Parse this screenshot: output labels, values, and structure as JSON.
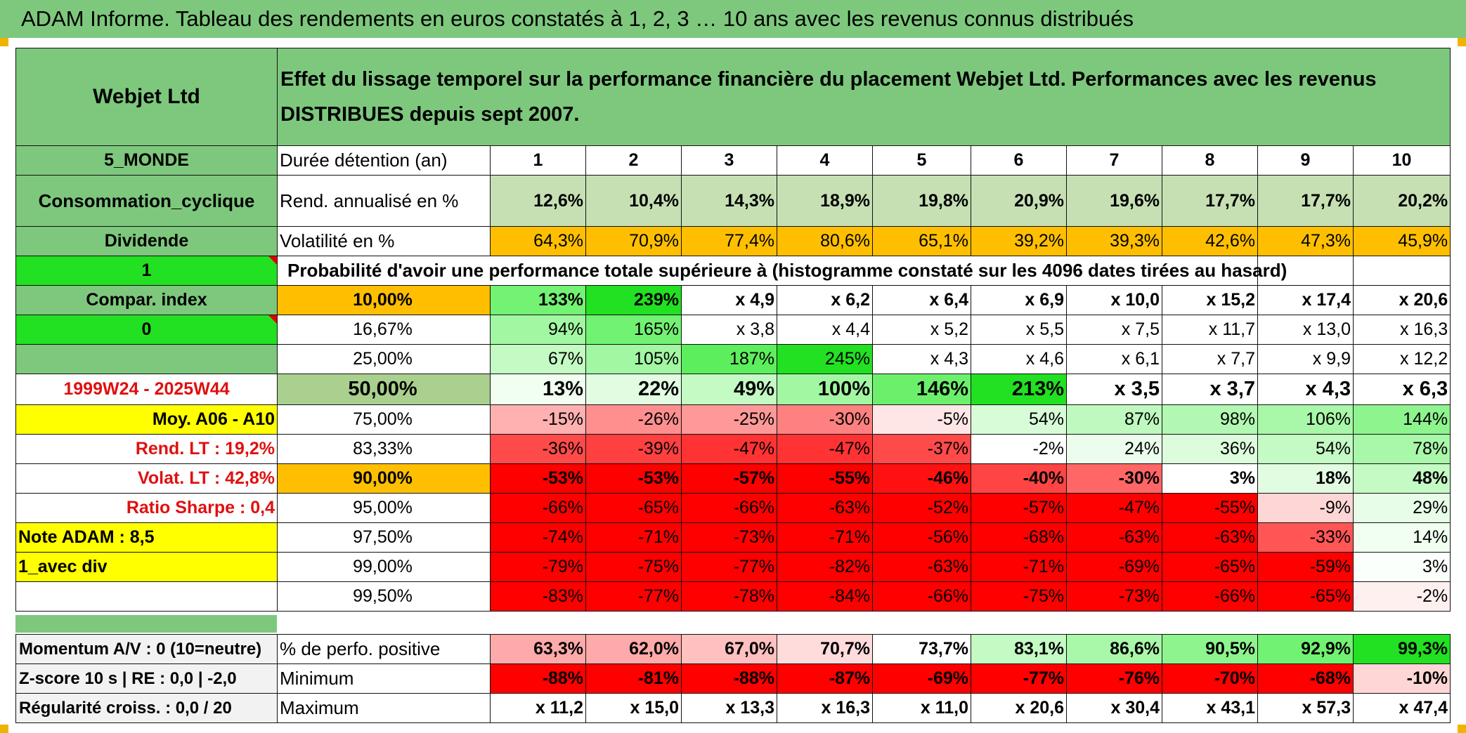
{
  "title": "ADAM Informe. Tableau des rendements en euros constatés à 1, 2, 3 … 10 ans avec les revenus connus distribués",
  "header": {
    "company": "Webjet Ltd",
    "description": "Effet du lissage temporel sur la performance financière du placement Webjet Ltd. Performances avec les revenus DISTRIBUES depuis sept 2007."
  },
  "left_labels": [
    "5_MONDE",
    "Consommation_cyclique",
    "Dividende",
    "1",
    "Compar. index",
    "0",
    "",
    "1999W24 - 2025W44",
    "Moy. A06 - A10",
    "Rend. LT :    19,2%",
    "Volat. LT :    42,8%",
    "Ratio Sharpe :    0,4",
    "Note ADAM : 8,5",
    "1_avec div",
    ""
  ],
  "durations_label": "Durée détention (an)",
  "durations": [
    "1",
    "2",
    "3",
    "4",
    "5",
    "6",
    "7",
    "8",
    "9",
    "10"
  ],
  "annual_return": {
    "label": "Rend. annualisé en %",
    "values": [
      "12,6%",
      "10,4%",
      "14,3%",
      "18,9%",
      "19,8%",
      "20,9%",
      "19,6%",
      "17,7%",
      "17,7%",
      "20,2%"
    ]
  },
  "volatility": {
    "label": "Volatilité en %",
    "values": [
      "64,3%",
      "70,9%",
      "77,4%",
      "80,6%",
      "65,1%",
      "39,2%",
      "39,3%",
      "42,6%",
      "47,3%",
      "45,9%"
    ]
  },
  "probability_header": "Probabilité d'avoir une performance totale supérieure à (histogramme constaté sur les 4096 dates tirées au hasard)",
  "quantiles": [
    {
      "level": "10,00%",
      "values": [
        "133%",
        "239%",
        "x 4,9",
        "x 6,2",
        "x 6,4",
        "x 6,9",
        "x 10,0",
        "x 15,2",
        "x 17,4",
        "x 20,6"
      ]
    },
    {
      "level": "16,67%",
      "values": [
        "94%",
        "165%",
        "x 3,8",
        "x 4,4",
        "x 5,2",
        "x 5,5",
        "x 7,5",
        "x 11,7",
        "x 13,0",
        "x 16,3"
      ]
    },
    {
      "level": "25,00%",
      "values": [
        "67%",
        "105%",
        "187%",
        "245%",
        "x 4,3",
        "x 4,6",
        "x 6,1",
        "x 7,7",
        "x 9,9",
        "x 12,2"
      ]
    },
    {
      "level": "50,00%",
      "values": [
        "13%",
        "22%",
        "49%",
        "100%",
        "146%",
        "213%",
        "x 3,5",
        "x 3,7",
        "x 4,3",
        "x 6,3"
      ]
    },
    {
      "level": "75,00%",
      "values": [
        "-15%",
        "-26%",
        "-25%",
        "-30%",
        "-5%",
        "54%",
        "87%",
        "98%",
        "106%",
        "144%"
      ]
    },
    {
      "level": "83,33%",
      "values": [
        "-36%",
        "-39%",
        "-47%",
        "-47%",
        "-37%",
        "-2%",
        "24%",
        "36%",
        "54%",
        "78%"
      ]
    },
    {
      "level": "90,00%",
      "values": [
        "-53%",
        "-53%",
        "-57%",
        "-55%",
        "-46%",
        "-40%",
        "-30%",
        "3%",
        "18%",
        "48%"
      ]
    },
    {
      "level": "95,00%",
      "values": [
        "-66%",
        "-65%",
        "-66%",
        "-63%",
        "-52%",
        "-57%",
        "-47%",
        "-55%",
        "-9%",
        "29%"
      ]
    },
    {
      "level": "97,50%",
      "values": [
        "-74%",
        "-71%",
        "-73%",
        "-71%",
        "-56%",
        "-68%",
        "-63%",
        "-63%",
        "-33%",
        "14%"
      ]
    },
    {
      "level": "99,00%",
      "values": [
        "-79%",
        "-75%",
        "-77%",
        "-82%",
        "-63%",
        "-71%",
        "-69%",
        "-65%",
        "-59%",
        "3%"
      ]
    },
    {
      "level": "99,50%",
      "values": [
        "-83%",
        "-77%",
        "-78%",
        "-84%",
        "-66%",
        "-75%",
        "-73%",
        "-66%",
        "-65%",
        "-2%"
      ]
    }
  ],
  "bottom_left": [
    "Momentum A/V : 0 (10=neutre)",
    "Z-score 10 s | RE : 0,0 | -2,0",
    "Régularité croiss. : 0,0 / 20"
  ],
  "stats": [
    {
      "label": "% de perfo. positive",
      "values": [
        "63,3%",
        "62,0%",
        "67,0%",
        "70,7%",
        "73,7%",
        "83,1%",
        "86,6%",
        "90,5%",
        "92,9%",
        "99,3%"
      ]
    },
    {
      "label": "Minimum",
      "values": [
        "-88%",
        "-81%",
        "-88%",
        "-87%",
        "-69%",
        "-77%",
        "-76%",
        "-70%",
        "-68%",
        "-10%"
      ]
    },
    {
      "label": "Maximum",
      "values": [
        "x 11,2",
        "x 15,0",
        "x 13,3",
        "x 16,3",
        "x 11,0",
        "x 20,6",
        "x 30,4",
        "x 43,1",
        "x 57,3",
        "x 47,4"
      ]
    }
  ],
  "colors": {
    "header_green": "#7dc87d",
    "bright_green": "#22e022",
    "yellow": "#ffff00",
    "orange": "#ffbf00",
    "label_red": "#e01010",
    "quantile_50_bg": "#a9d08e"
  },
  "cell_colors": {
    "annual_return": [
      "#c6e0b4",
      "#c6e0b4",
      "#c6e0b4",
      "#c6e0b4",
      "#c6e0b4",
      "#c6e0b4",
      "#c6e0b4",
      "#c6e0b4",
      "#c6e0b4",
      "#c6e0b4"
    ],
    "volatility": [
      "#ffbf00",
      "#ffbf00",
      "#ffbf00",
      "#ffbf00",
      "#ffbf00",
      "#ffbf00",
      "#ffbf00",
      "#ffbf00",
      "#ffbf00",
      "#ffbf00"
    ],
    "quantiles": [
      [
        "#74f274",
        "#22e022",
        "#fff",
        "#fff",
        "#fff",
        "#fff",
        "#fff",
        "#fff",
        "#fff",
        "#fff"
      ],
      [
        "#a2f7a2",
        "#72f272",
        "#fff",
        "#fff",
        "#fff",
        "#fff",
        "#fff",
        "#fff",
        "#fff",
        "#fff"
      ],
      [
        "#c4fac4",
        "#a2f7a2",
        "#5cee5c",
        "#22e022",
        "#fff",
        "#fff",
        "#fff",
        "#fff",
        "#fff",
        "#fff"
      ],
      [
        "#f0fff0",
        "#e2fce2",
        "#c4fac4",
        "#a2f7a2",
        "#6cf06c",
        "#22e022",
        "#fff",
        "#fff",
        "#fff",
        "#fff"
      ],
      [
        "#ffb0b0",
        "#ff8f8f",
        "#ff9999",
        "#ff8080",
        "#ffe6e6",
        "#d8fbd8",
        "#bff9bf",
        "#b2f8b2",
        "#a9f7a9",
        "#8ef48e"
      ],
      [
        "#ff4a4a",
        "#ff4040",
        "#ff3333",
        "#ff3333",
        "#ff4a4a",
        "#ffffff",
        "#ecfded",
        "#dcfcdc",
        "#c4fac4",
        "#a9f7a9"
      ],
      [
        "#ff0000",
        "#ff0000",
        "#ff0000",
        "#ff0000",
        "#ff1111",
        "#ff4444",
        "#ff6666",
        "#ffffff",
        "#e2fce2",
        "#c4fac4"
      ],
      [
        "#ff0000",
        "#ff0000",
        "#ff0000",
        "#ff0000",
        "#ff0000",
        "#ff0000",
        "#ff0000",
        "#ff0000",
        "#ffd6d6",
        "#e8fde8"
      ],
      [
        "#ff0000",
        "#ff0000",
        "#ff0000",
        "#ff0000",
        "#ff0000",
        "#ff0000",
        "#ff0000",
        "#ff0000",
        "#ff5555",
        "#f0fff0"
      ],
      [
        "#ff0000",
        "#ff0000",
        "#ff0000",
        "#ff0000",
        "#ff0000",
        "#ff0000",
        "#ff0000",
        "#ff0000",
        "#ff0000",
        "#fbfffb"
      ],
      [
        "#ff0000",
        "#ff0000",
        "#ff0000",
        "#ff0000",
        "#ff0000",
        "#ff0000",
        "#ff0000",
        "#ff0000",
        "#ff0000",
        "#fff0f0"
      ]
    ],
    "stats": [
      [
        "#ffaaaa",
        "#ffaaaa",
        "#ffc0c0",
        "#ffdcdc",
        "#ffffff",
        "#c4fac4",
        "#a9f7a9",
        "#8ef48e",
        "#72f272",
        "#22e022"
      ],
      [
        "#ff0000",
        "#ff0000",
        "#ff0000",
        "#ff0000",
        "#ff0000",
        "#ff0000",
        "#ff0000",
        "#ff0000",
        "#ff0000",
        "#ffd6d6"
      ],
      [
        "#ffffff",
        "#ffffff",
        "#ffffff",
        "#ffffff",
        "#ffffff",
        "#ffffff",
        "#ffffff",
        "#ffffff",
        "#ffffff",
        "#ffffff"
      ]
    ]
  }
}
